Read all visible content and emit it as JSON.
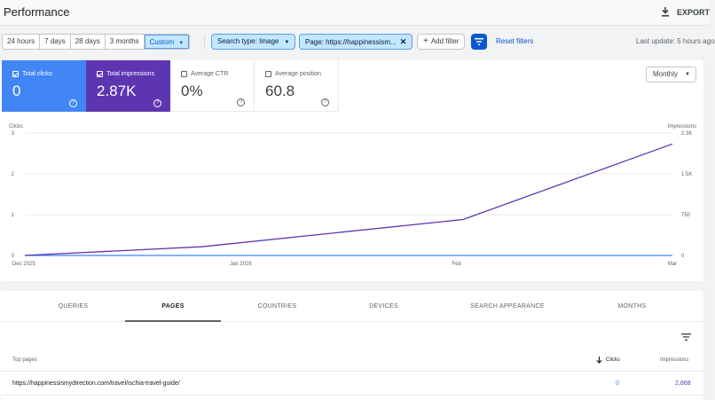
{
  "header": {
    "title": "Performance",
    "export_label": "EXPORT"
  },
  "filters": {
    "date_ranges": [
      "24 hours",
      "7 days",
      "28 days",
      "3 months",
      "Custom"
    ],
    "active_range": "Custom",
    "search_type": "Search type: Image",
    "page_filter": "Page: https://happinessism...",
    "add_filter": "Add filter",
    "reset": "Reset filters",
    "last_update": "Last update: 5 hours ago"
  },
  "metrics": [
    {
      "label": "Total clicks",
      "value": "0",
      "checked": true
    },
    {
      "label": "Total impressions",
      "value": "2.87K",
      "checked": true
    },
    {
      "label": "Average CTR",
      "value": "0%",
      "checked": false
    },
    {
      "label": "Average position",
      "value": "60.8",
      "checked": false
    }
  ],
  "granularity": "Monthly",
  "chart_data": {
    "type": "line",
    "x_ticks": [
      "Dec 2025",
      "Jan 2026",
      "Feb",
      "Mar"
    ],
    "left_axis": {
      "label": "Clicks",
      "ticks": [
        "3",
        "2",
        "1",
        "0"
      ],
      "range": [
        0,
        3
      ]
    },
    "right_axis": {
      "label": "Impressions",
      "ticks": [
        "2.3K",
        "1.5K",
        "750",
        "0"
      ],
      "range": [
        0,
        2250
      ]
    },
    "series": [
      {
        "name": "Clicks",
        "color": "#4285f4",
        "axis": "left",
        "x": [
          0,
          1,
          2,
          3
        ],
        "values": [
          0,
          0,
          0,
          0
        ]
      },
      {
        "name": "Impressions",
        "color": "#5e35b1",
        "axis": "right",
        "x": [
          0,
          0.82,
          2.03,
          3
        ],
        "values": [
          0,
          160,
          660,
          2050
        ]
      }
    ]
  },
  "table": {
    "tabs": [
      "QUERIES",
      "PAGES",
      "COUNTRIES",
      "DEVICES",
      "SEARCH APPEARANCE",
      "MONTHS"
    ],
    "active_tab": "PAGES",
    "columns": [
      "Top pages",
      "Clicks",
      "Impressions"
    ],
    "rows": [
      {
        "page": "https://happinessismydirection.com/travel/ischia-travel-guide/",
        "clicks": "0",
        "impressions": "2,868"
      }
    ]
  }
}
